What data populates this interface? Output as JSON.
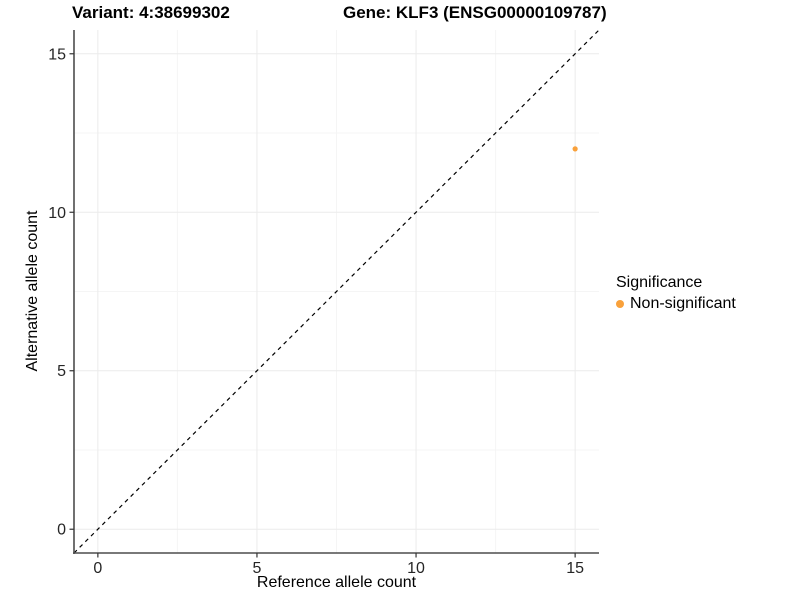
{
  "titles": {
    "variant": "Variant: 4:38699302",
    "gene": "Gene: KLF3 (ENSG00000109787)"
  },
  "chart_data": {
    "type": "scatter",
    "title_left": "Variant: 4:38699302",
    "title_right": "Gene: KLF3 (ENSG00000109787)",
    "xlabel": "Reference allele count",
    "ylabel": "Alternative allele count",
    "xlim": [
      -0.75,
      15.75
    ],
    "ylim": [
      -0.75,
      15.75
    ],
    "x_ticks": [
      0,
      5,
      10,
      15
    ],
    "y_ticks": [
      0,
      5,
      10,
      15
    ],
    "x_minor_ticks": [
      2.5,
      7.5,
      12.5
    ],
    "y_minor_ticks": [
      2.5,
      7.5,
      12.5
    ],
    "grid": true,
    "reference_line": {
      "type": "identity",
      "slope": 1,
      "intercept": 0,
      "style": "dashed",
      "color": "#000000"
    },
    "series": [
      {
        "name": "Non-significant",
        "color": "#F9A13B",
        "points": [
          {
            "x": 15,
            "y": 12
          }
        ],
        "point_radius": 2.6
      }
    ],
    "legend": {
      "title": "Significance",
      "position": "right",
      "entries": [
        {
          "label": "Non-significant",
          "color": "#F9A13B"
        }
      ]
    },
    "colors": {
      "axis_line": "#4d4d4d",
      "tick_mark": "#333333",
      "tick_label": "#262626",
      "grid_major": "#ebebeb",
      "grid_minor": "#f5f5f5",
      "background": "#ffffff",
      "point": "#F9A13B"
    }
  }
}
